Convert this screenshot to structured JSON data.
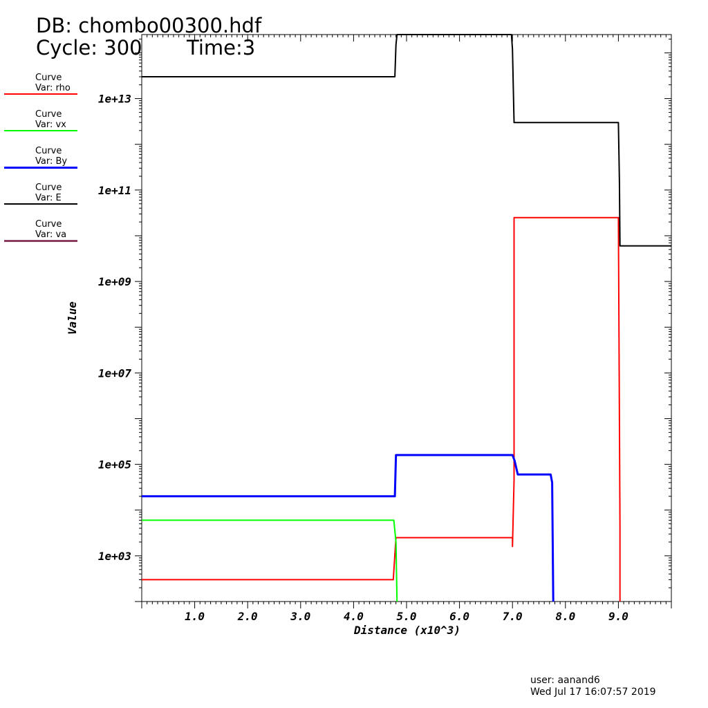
{
  "header": {
    "db": "DB: chombo00300.hdf",
    "cycle": "Cycle: 300",
    "time": "Time:3"
  },
  "legend": [
    {
      "label": "Curve",
      "var": "Var: rho",
      "color": "#ff0000"
    },
    {
      "label": "Curve",
      "var": "Var: vx",
      "color": "#00ff00"
    },
    {
      "label": "Curve",
      "var": "Var: By",
      "color": "#0000ff"
    },
    {
      "label": "Curve",
      "var": "Var: E",
      "color": "#000000"
    },
    {
      "label": "Curve",
      "var": "Var: va",
      "color": "#8b3a62"
    }
  ],
  "footer": {
    "user": "user: aanand6",
    "date": "Wed Jul 17 16:07:57 2019"
  },
  "chart_data": {
    "type": "line",
    "title": "",
    "xlabel": "Distance (x10^3)",
    "ylabel": "Value",
    "xlim": [
      0,
      10
    ],
    "ylim_log10": [
      2,
      14.4
    ],
    "yscale": "log",
    "grid": false,
    "legend_position": "left",
    "x_tick_labels": [
      "1.0",
      "2.0",
      "3.0",
      "4.0",
      "5.0",
      "6.0",
      "7.0",
      "8.0",
      "9.0"
    ],
    "y_tick_labels": [
      "1e+03",
      "1e+05",
      "1e+07",
      "1e+09",
      "1e+11",
      "1e+13"
    ],
    "series": [
      {
        "name": "Var: rho",
        "color": "#ff0000",
        "x": [
          0,
          4.75,
          4.8,
          4.8,
          7.0,
          7.0,
          7.03,
          7.03,
          9.0,
          9.03,
          9.03
        ],
        "y": [
          300,
          300,
          2500,
          2500,
          2500,
          1600,
          45000,
          25000000000.0,
          25000000000.0,
          4000,
          100
        ]
      },
      {
        "name": "Var: vx",
        "color": "#00ff00",
        "x": [
          0,
          4.76,
          4.8,
          4.82
        ],
        "y": [
          6000,
          6000,
          2000,
          100
        ]
      },
      {
        "name": "Var: By",
        "color": "#0000ff",
        "x": [
          0,
          4.78,
          4.8,
          7.0,
          7.04,
          7.1,
          7.72,
          7.75,
          7.77
        ],
        "y": [
          20000,
          20000,
          160000,
          160000,
          120000,
          60000,
          60000,
          40000,
          100
        ]
      },
      {
        "name": "Var: E",
        "color": "#000000",
        "x": [
          0,
          4.78,
          4.8,
          4.82,
          6.98,
          7.0,
          7.03,
          9.0,
          9.02,
          9.03,
          10.0
        ],
        "y": [
          30000000000000.0,
          30000000000000.0,
          150000000000000.0,
          260000000000000.0,
          260000000000000.0,
          120000000000000.0,
          3000000000000.0,
          3000000000000.0,
          150000000000.0,
          6000000000.0,
          6000000000.0
        ]
      },
      {
        "name": "Var: va",
        "color": "#8b3a62",
        "x": [],
        "y": []
      }
    ]
  }
}
